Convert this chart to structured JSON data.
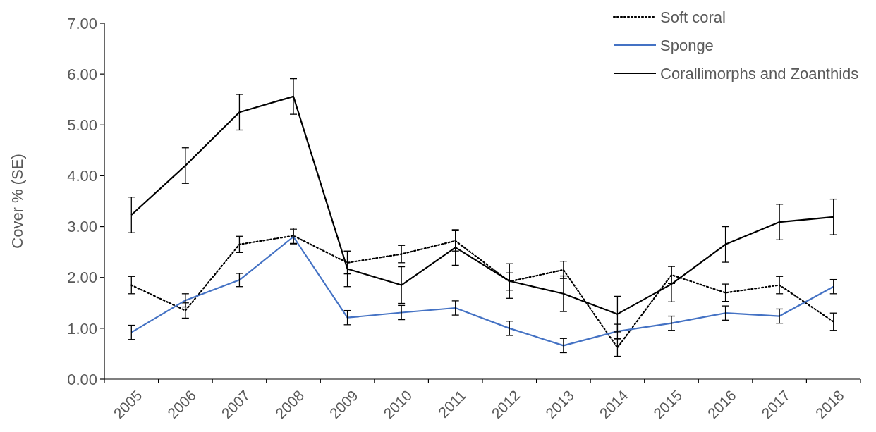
{
  "chart_data": {
    "type": "line",
    "ylabel": "Cover % (SE)",
    "categories": [
      "2005",
      "2006",
      "2007",
      "2008",
      "2009",
      "2010",
      "2011",
      "2012",
      "2013",
      "2014",
      "2015",
      "2016",
      "2017",
      "2018"
    ],
    "ylim": [
      0,
      7
    ],
    "yticks": [
      {
        "value": 0,
        "label": "0.00"
      },
      {
        "value": 1,
        "label": "1.00"
      },
      {
        "value": 2,
        "label": "2.00"
      },
      {
        "value": 3,
        "label": "3.00"
      },
      {
        "value": 4,
        "label": "4.00"
      },
      {
        "value": 5,
        "label": "5.00"
      },
      {
        "value": 6,
        "label": "6.00"
      },
      {
        "value": 7,
        "label": "7.00"
      }
    ],
    "grid": false,
    "legend": "top right",
    "marker": "none",
    "series": [
      {
        "name": "Soft coral",
        "color": "#000000",
        "line_style": "dotted",
        "values": [
          1.85,
          1.35,
          2.65,
          2.82,
          2.29,
          2.46,
          2.72,
          1.92,
          2.15,
          0.62,
          2.05,
          1.7,
          1.85,
          1.13
        ],
        "errors": [
          0.17,
          0.15,
          0.16,
          0.15,
          0.22,
          0.17,
          0.2,
          0.17,
          0.17,
          0.17,
          0.17,
          0.17,
          0.17,
          0.17
        ]
      },
      {
        "name": "Sponge",
        "color": "#4472c4",
        "line_style": "solid",
        "values": [
          0.92,
          1.55,
          1.95,
          2.8,
          1.21,
          1.31,
          1.4,
          1.0,
          0.66,
          0.94,
          1.1,
          1.3,
          1.24,
          1.82
        ],
        "errors": [
          0.14,
          0.13,
          0.13,
          0.14,
          0.14,
          0.14,
          0.14,
          0.14,
          0.14,
          0.14,
          0.14,
          0.14,
          0.14,
          0.14
        ]
      },
      {
        "name": "Corallimorphs and Zoanthids",
        "color": "#000000",
        "line_style": "solid",
        "values": [
          3.23,
          4.2,
          5.25,
          5.56,
          2.17,
          1.85,
          2.59,
          1.93,
          1.68,
          1.28,
          1.87,
          2.65,
          3.09,
          3.19
        ],
        "errors": [
          0.35,
          0.35,
          0.35,
          0.35,
          0.35,
          0.36,
          0.35,
          0.34,
          0.35,
          0.35,
          0.35,
          0.35,
          0.35,
          0.35
        ]
      }
    ]
  }
}
